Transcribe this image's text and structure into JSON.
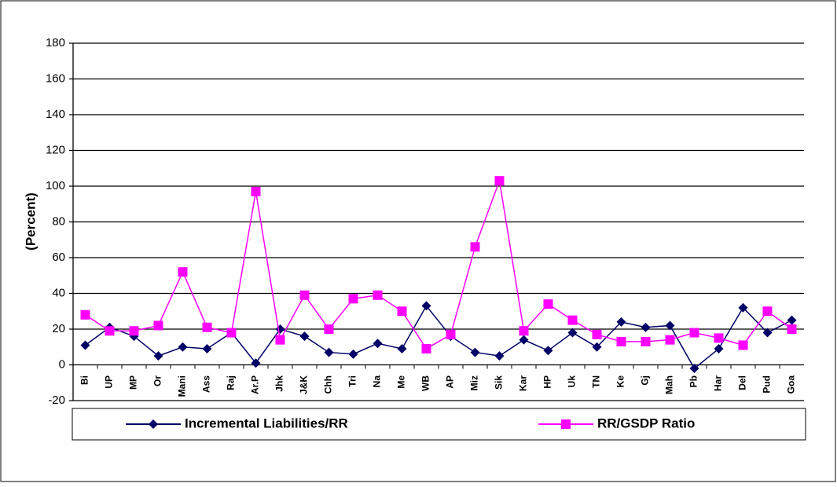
{
  "chart_data": {
    "type": "line",
    "ylabel": "(Percent)",
    "categories": [
      "Bi",
      "UP",
      "MP",
      "Or",
      "Mani",
      "Ass",
      "Raj",
      "Ar.P",
      "Jhk",
      "J&K",
      "Chh",
      "Tri",
      "Na",
      "Me",
      "WB",
      "AP",
      "Miz",
      "Sik",
      "Kar",
      "HP",
      "Uk",
      "TN",
      "Ke",
      "Gj",
      "Mah",
      "Pb",
      "Har",
      "Del",
      "Pud",
      "Goa"
    ],
    "series": [
      {
        "name": "Incremental Liabilities/RR",
        "color": "#000066",
        "marker": "diamond",
        "values": [
          11,
          21,
          16,
          5,
          10,
          9,
          18,
          1,
          20,
          16,
          7,
          6,
          12,
          9,
          33,
          16,
          7,
          5,
          14,
          8,
          18,
          10,
          24,
          21,
          22,
          -2,
          9,
          32,
          18,
          25
        ]
      },
      {
        "name": "RR/GSDP Ratio",
        "color": "#ff00ff",
        "marker": "square",
        "values": [
          28,
          19,
          19,
          22,
          52,
          21,
          18,
          97,
          14,
          39,
          20,
          37,
          39,
          30,
          9,
          17,
          66,
          103,
          19,
          34,
          25,
          17,
          13,
          13,
          14,
          18,
          15,
          11,
          30,
          20
        ]
      }
    ],
    "ylim": [
      -20,
      180
    ],
    "yticks": [
      -20,
      0,
      20,
      40,
      60,
      80,
      100,
      120,
      140,
      160,
      180
    ],
    "grid": true
  }
}
